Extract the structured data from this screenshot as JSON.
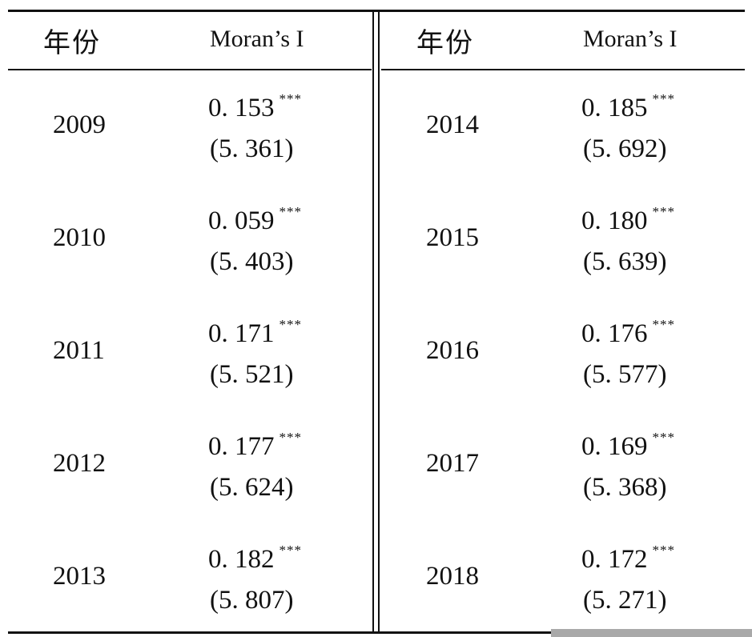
{
  "table": {
    "columns": {
      "year_header": "年份",
      "moran_header": "Moran’s I"
    },
    "left_rows": [
      {
        "year": "2009",
        "coef": "0. 153",
        "stars": "***",
        "tstat": "(5. 361)"
      },
      {
        "year": "2010",
        "coef": "0. 059",
        "stars": "***",
        "tstat": "(5. 403)"
      },
      {
        "year": "2011",
        "coef": "0. 171",
        "stars": "***",
        "tstat": "(5. 521)"
      },
      {
        "year": "2012",
        "coef": "0. 177",
        "stars": "***",
        "tstat": "(5. 624)"
      },
      {
        "year": "2013",
        "coef": "0. 182",
        "stars": "***",
        "tstat": "(5. 807)"
      }
    ],
    "right_rows": [
      {
        "year": "2014",
        "coef": "0. 185",
        "stars": "***",
        "tstat": "(5. 692)"
      },
      {
        "year": "2015",
        "coef": "0. 180",
        "stars": "***",
        "tstat": "(5. 639)"
      },
      {
        "year": "2016",
        "coef": "0. 176",
        "stars": "***",
        "tstat": "(5. 577)"
      },
      {
        "year": "2017",
        "coef": "0. 169",
        "stars": "***",
        "tstat": "(5. 368)"
      },
      {
        "year": "2018",
        "coef": "0. 172",
        "stars": "***",
        "tstat": "(5. 271)"
      }
    ]
  }
}
